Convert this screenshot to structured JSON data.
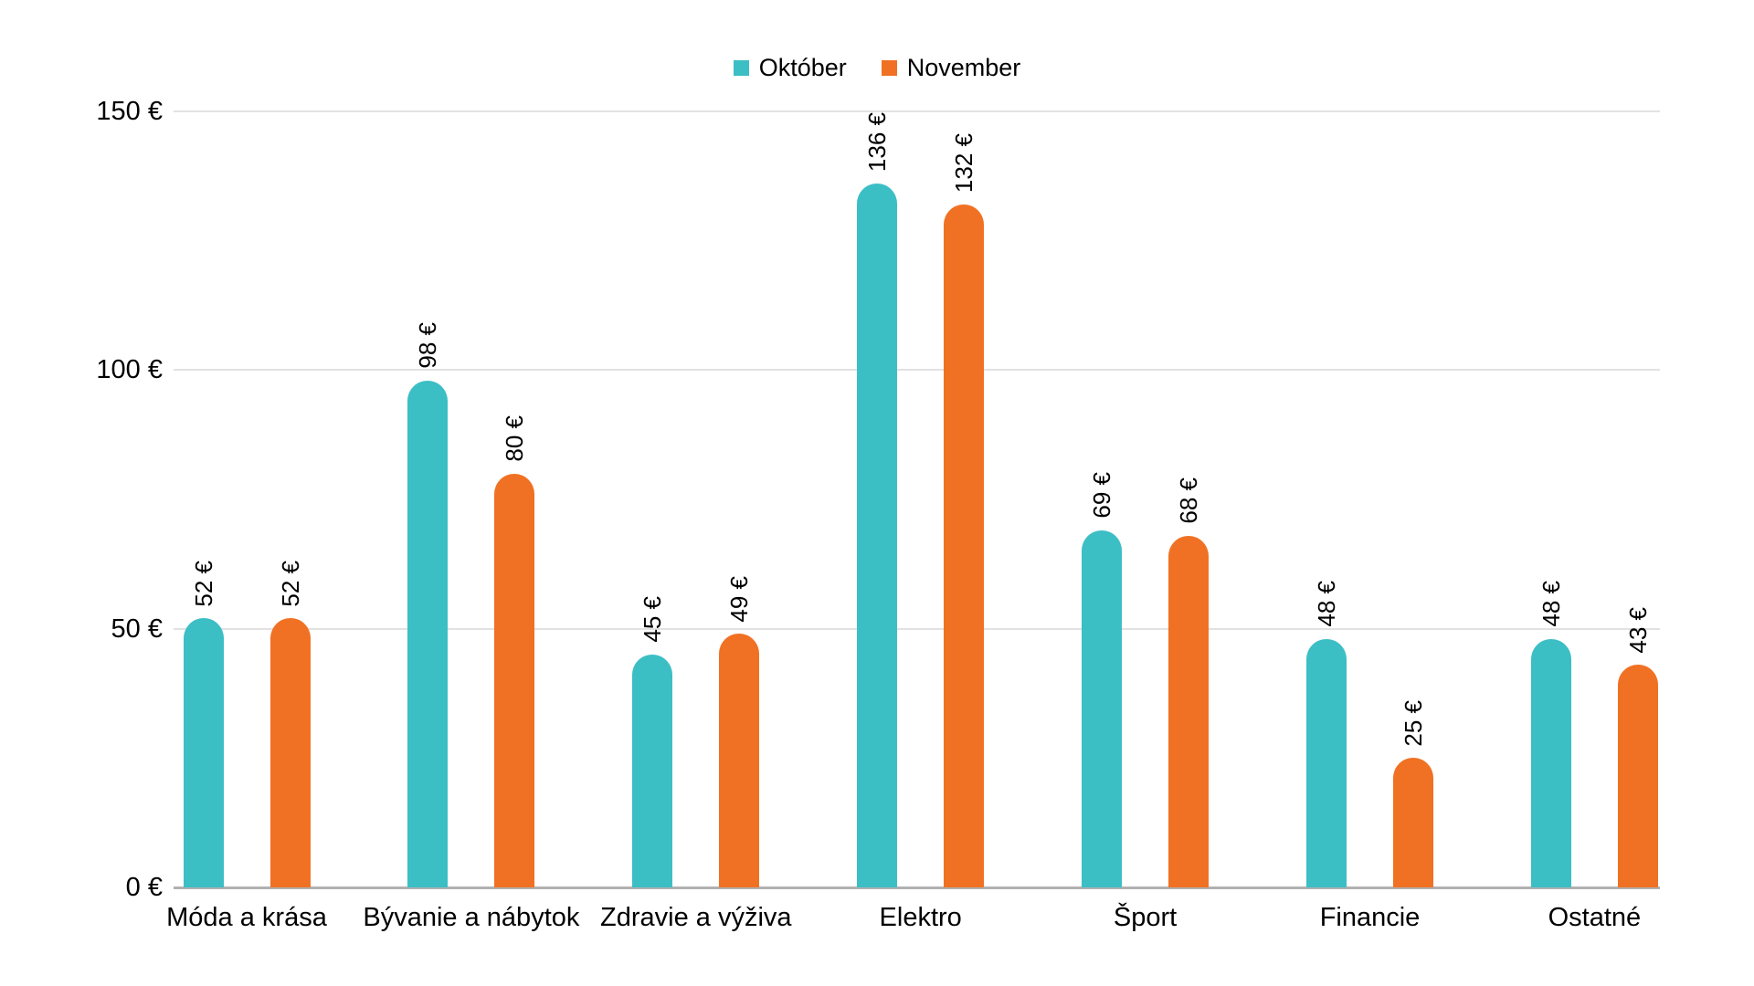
{
  "chart_data": {
    "type": "bar",
    "title": "",
    "categories": [
      "Móda a krása",
      "Bývanie a nábytok",
      "Zdravie a výživa",
      "Elektro",
      "Šport",
      "Financie",
      "Ostatné"
    ],
    "series": [
      {
        "name": "Október",
        "color": "#3cbec5",
        "values": [
          52,
          98,
          45,
          136,
          69,
          48,
          48
        ],
        "labels": [
          "52 €",
          "98 €",
          "45 €",
          "136 €",
          "69 €",
          "48 €",
          "48 €"
        ]
      },
      {
        "name": "November",
        "color": "#f07123",
        "values": [
          52,
          80,
          49,
          132,
          68,
          25,
          43
        ],
        "labels": [
          "52 €",
          "80 €",
          "49 €",
          "132 €",
          "68 €",
          "25 €",
          "43 €"
        ]
      }
    ],
    "ylim": [
      0,
      150
    ],
    "y_ticks": [
      {
        "value": 0,
        "label": "0 €"
      },
      {
        "value": 50,
        "label": "50 €"
      },
      {
        "value": 100,
        "label": "100 €"
      },
      {
        "value": 150,
        "label": "150 €"
      }
    ],
    "grid": true,
    "legend_position": "top",
    "value_label_rotation": -90,
    "value_label_color": "#000000"
  },
  "colors": {
    "background": "#ffffff",
    "gridline": "#e2e2e2",
    "axis_line": "#b1b1b1",
    "text": "#000000"
  }
}
